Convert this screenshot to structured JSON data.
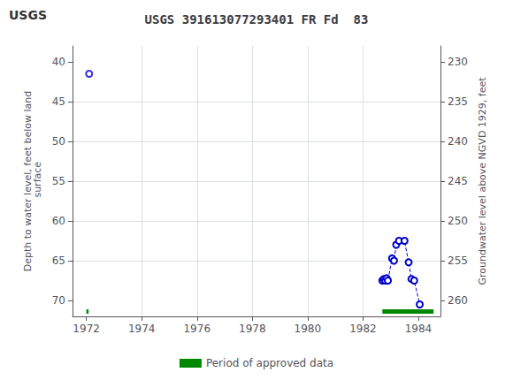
{
  "chart_data": {
    "type": "line",
    "title": "USGS 391613077293401 FR Fd  83",
    "annotations": [
      "USGS"
    ],
    "ylabel": "Depth to water level, feet below land\n surface",
    "y2label": "Groundwater level above NGVD 1929, feet",
    "xlim": [
      1971.5,
      1984.8
    ],
    "xticks": [
      1972,
      1974,
      1976,
      1978,
      1980,
      1982,
      1984
    ],
    "ylim": [
      72,
      38
    ],
    "yticks": [
      40,
      45,
      50,
      55,
      60,
      65,
      70
    ],
    "y2lim": [
      262,
      228
    ],
    "y2ticks": [
      260,
      255,
      250,
      245,
      240,
      235,
      230
    ],
    "grid": true,
    "legend": "bottom",
    "series": [
      {
        "type": "scatter",
        "color": "#0000cc",
        "marker": "circle",
        "x": [
          1972.1
        ],
        "values": [
          41.5
        ]
      },
      {
        "type": "line",
        "color": "#0000cc",
        "marker": "circle",
        "line_style": "dashed",
        "x": [
          1982.7,
          1982.75,
          1982.8,
          1982.85,
          1982.9,
          1983.05,
          1983.12,
          1983.2,
          1983.3,
          1983.5,
          1983.65,
          1983.75,
          1983.85,
          1984.05
        ],
        "values": [
          67.5,
          67.3,
          67.5,
          67.2,
          67.5,
          64.7,
          65.0,
          63.0,
          62.5,
          62.5,
          65.2,
          67.3,
          67.5,
          70.5
        ]
      },
      {
        "type": "span",
        "name": "Period of approved data",
        "color": "#008800",
        "start": [
          1982.7,
          1972.0
        ],
        "end": [
          1984.55,
          1972.08
        ]
      }
    ]
  }
}
